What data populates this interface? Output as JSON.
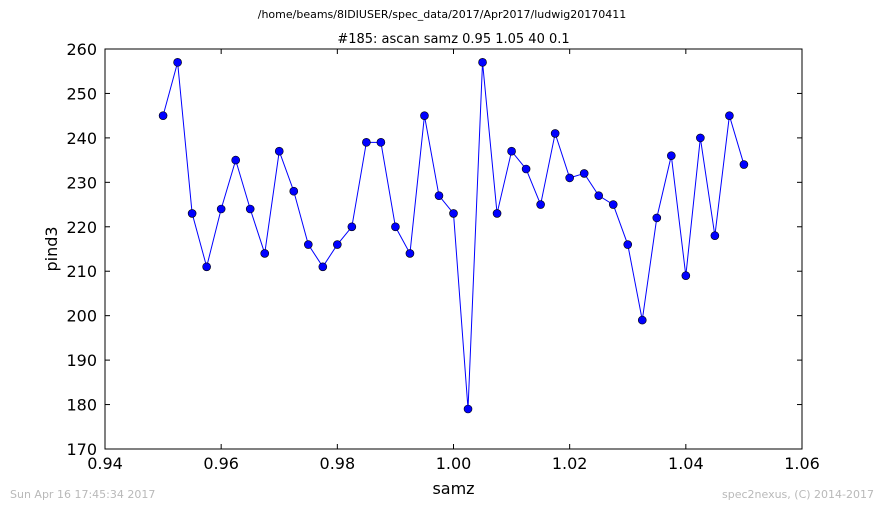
{
  "figure": {
    "suptitle": "/home/beams/8IDIUSER/spec_data/2017/Apr2017/ludwig20170411",
    "footer_left": "Sun Apr 16 17:45:34 2017",
    "footer_right": "spec2nexus, (C) 2014-2017"
  },
  "chart_data": {
    "type": "line",
    "title": "#185: ascan  samz 0.95 1.05  40 0.1",
    "xlabel": "samz",
    "ylabel": "pind3",
    "xlim": [
      0.94,
      1.06
    ],
    "ylim": [
      170,
      260
    ],
    "xticks": [
      "0.94",
      "0.96",
      "0.98",
      "1.00",
      "1.02",
      "1.04",
      "1.06"
    ],
    "yticks": [
      "170",
      "180",
      "190",
      "200",
      "210",
      "220",
      "230",
      "240",
      "250",
      "260"
    ],
    "grid": false,
    "marker": "circle",
    "line_color": "#0000ff",
    "series": [
      {
        "x": [
          0.95,
          0.9525,
          0.955,
          0.9575,
          0.96,
          0.9625,
          0.965,
          0.9675,
          0.97,
          0.9725,
          0.975,
          0.9775,
          0.98,
          0.9825,
          0.985,
          0.9875,
          0.99,
          0.9925,
          0.995,
          0.9975,
          1.0,
          1.0025,
          1.005,
          1.0075,
          1.01,
          1.0125,
          1.015,
          1.0175,
          1.02,
          1.0225,
          1.025,
          1.0275,
          1.03,
          1.0325,
          1.035,
          1.0375,
          1.04,
          1.0425,
          1.045,
          1.0475,
          1.05
        ],
        "y": [
          245,
          257,
          223,
          211,
          224,
          235,
          224,
          214,
          237,
          228,
          216,
          211,
          216,
          220,
          239,
          239,
          220,
          214,
          245,
          227,
          223,
          179,
          257,
          223,
          237,
          233,
          225,
          241,
          231,
          232,
          227,
          225,
          216,
          199,
          222,
          236,
          209,
          240,
          218,
          245,
          234
        ]
      }
    ]
  }
}
